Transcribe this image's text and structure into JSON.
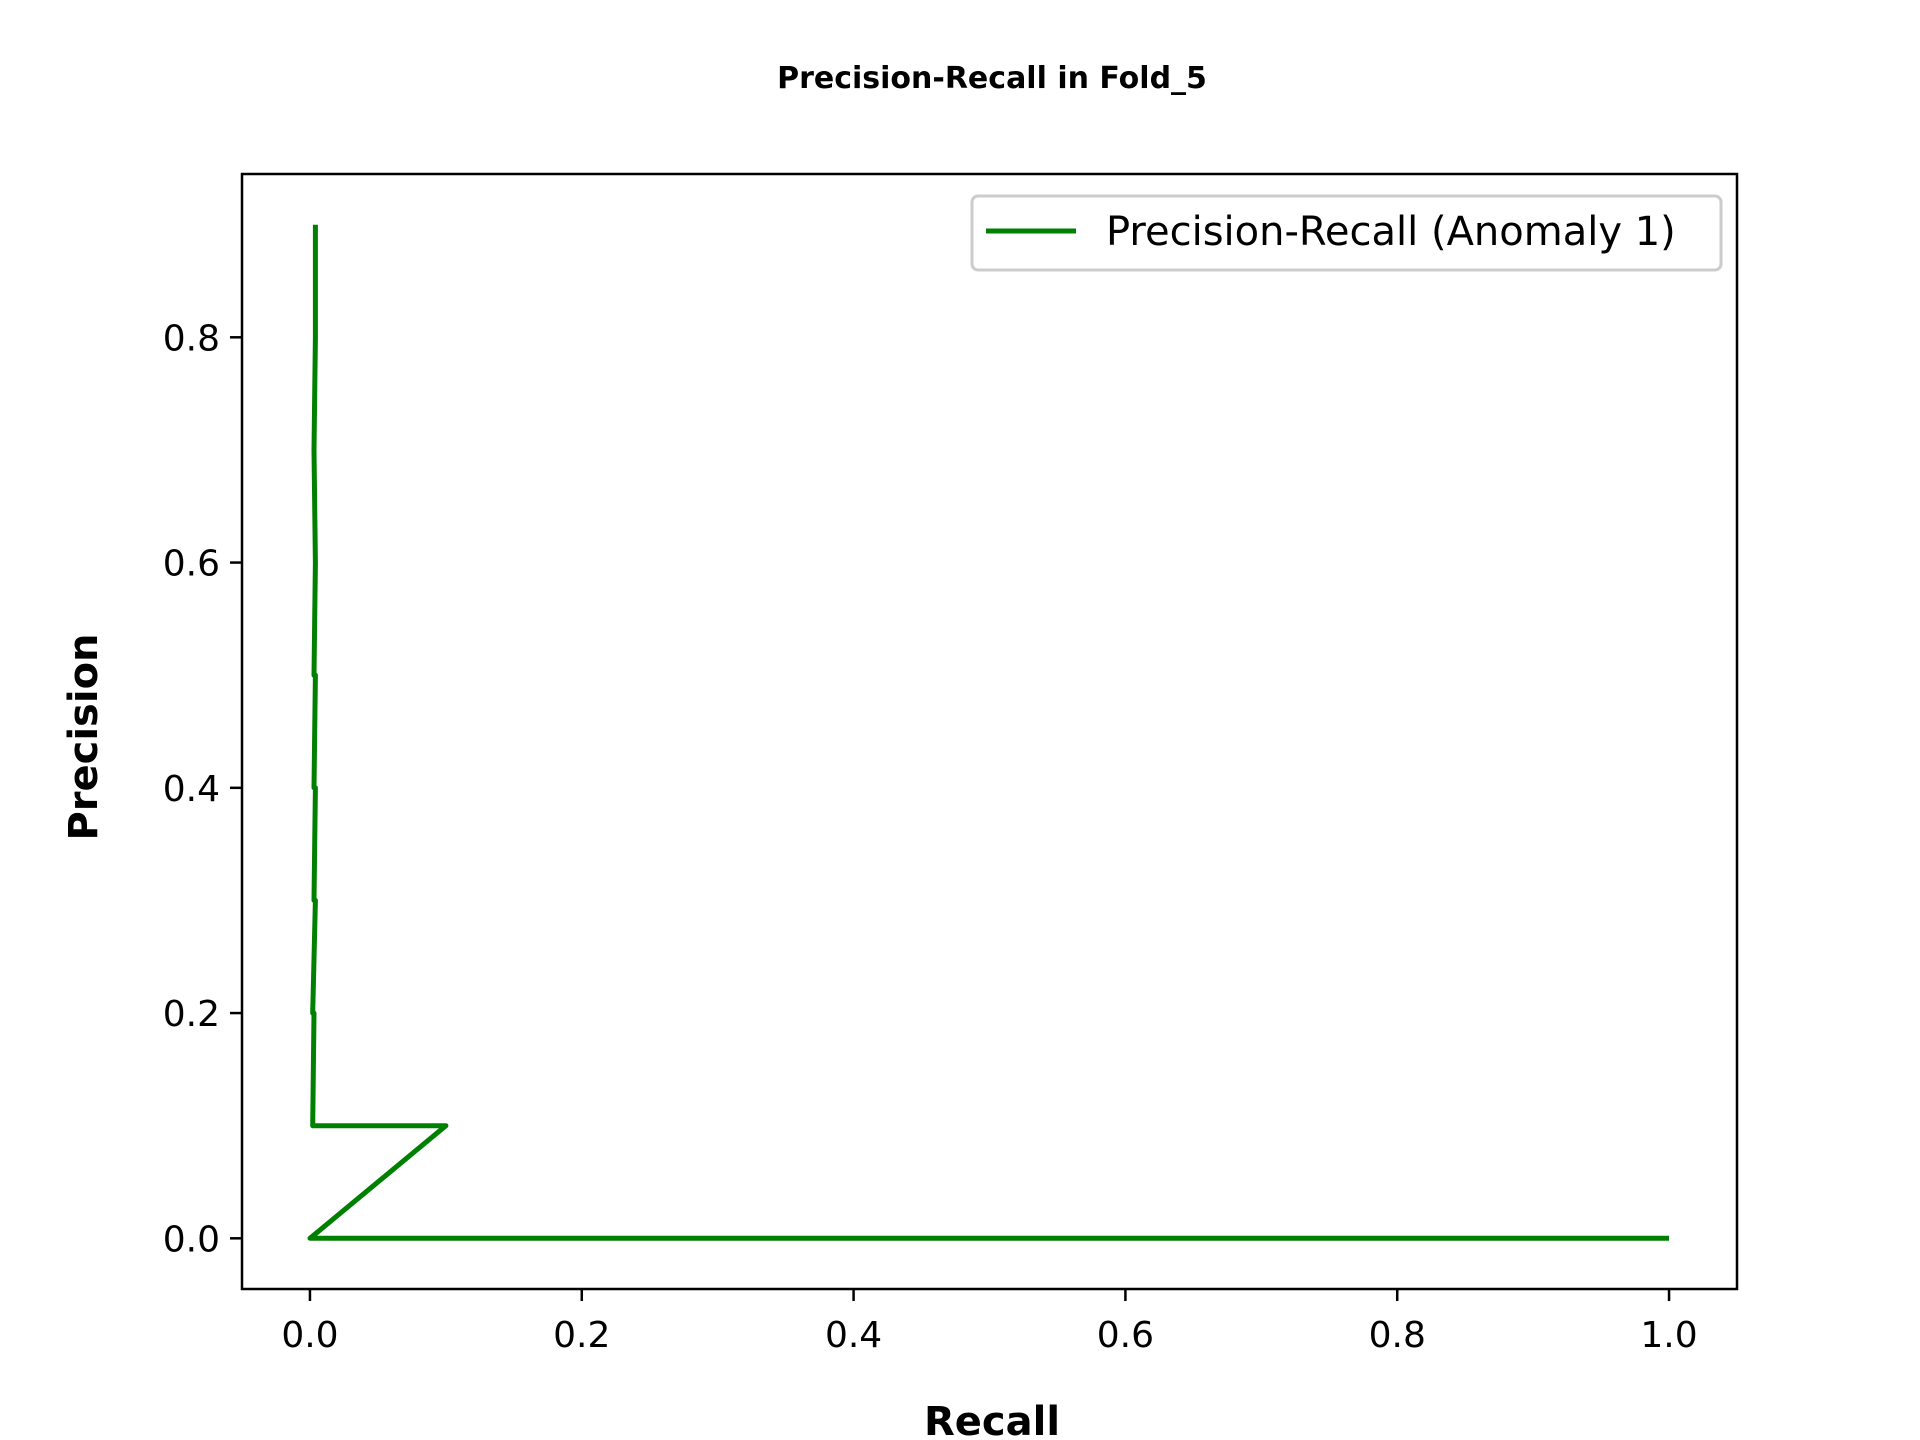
{
  "chart_data": {
    "type": "line",
    "title": "Precision-Recall in Fold_5",
    "xlabel": "Recall",
    "ylabel": "Precision",
    "xlim": [
      -0.05,
      1.05
    ],
    "ylim": [
      -0.045,
      0.945
    ],
    "xticks": [
      0.0,
      0.2,
      0.4,
      0.6,
      0.8,
      1.0
    ],
    "xtick_labels": [
      "0.0",
      "0.2",
      "0.4",
      "0.6",
      "0.8",
      "1.0"
    ],
    "yticks": [
      0.0,
      0.2,
      0.4,
      0.6,
      0.8
    ],
    "ytick_labels": [
      "0.0",
      "0.2",
      "0.4",
      "0.6",
      "0.8"
    ],
    "grid": false,
    "legend_position": "top-right",
    "series": [
      {
        "name": "Precision-Recall (Anomaly 1)",
        "color": "#008000",
        "x": [
          0.004,
          0.004,
          0.003,
          0.004,
          0.003,
          0.004,
          0.003,
          0.004,
          0.003,
          0.004,
          0.002,
          0.003,
          0.002,
          0.003,
          0.002,
          0.1,
          0.0,
          1.0
        ],
        "y": [
          0.9,
          0.8,
          0.7,
          0.6,
          0.5,
          0.5,
          0.4,
          0.4,
          0.3,
          0.3,
          0.2,
          0.2,
          0.1,
          0.1,
          0.1,
          0.1,
          0.0,
          0.0
        ]
      }
    ]
  }
}
